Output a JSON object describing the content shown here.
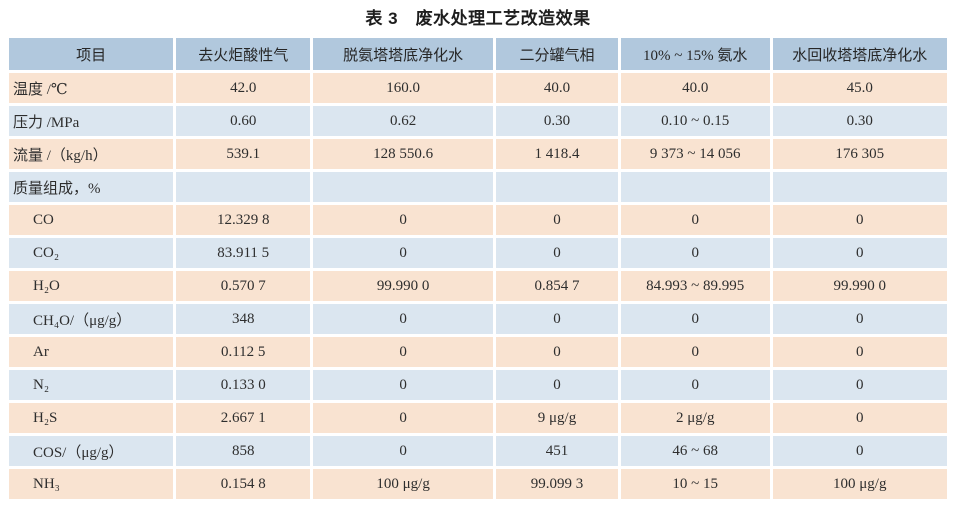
{
  "title": "表 3　废水处理工艺改造效果",
  "colors": {
    "header_bg": "#b1c8dd",
    "row_peach_bg": "#f9e3d1",
    "row_blue_bg": "#dbe6f0",
    "text": "#2e2e2e",
    "page_bg": "#ffffff"
  },
  "table": {
    "headers": [
      "项目",
      "去火炬酸性气",
      "脱氨塔塔底净化水",
      "二分罐气相",
      "10% ~ 15% 氨水",
      "水回收塔塔底净化水"
    ],
    "column_widths_pct": [
      17.8,
      14.5,
      19.5,
      13.2,
      16.1,
      18.9
    ],
    "rows": [
      {
        "label": "温度 /℃",
        "indent": false,
        "values": [
          "42.0",
          "160.0",
          "40.0",
          "40.0",
          "45.0"
        ]
      },
      {
        "label": "压力 /MPa",
        "indent": false,
        "values": [
          "0.60",
          "0.62",
          "0.30",
          "0.10 ~ 0.15",
          "0.30"
        ]
      },
      {
        "label": "流量 /（kg/h）",
        "indent": false,
        "values": [
          "539.1",
          "128 550.6",
          "1 418.4",
          "9 373 ~ 14 056",
          "176 305"
        ]
      },
      {
        "label": "质量组成，%",
        "indent": false,
        "values": [
          "",
          "",
          "",
          "",
          ""
        ]
      },
      {
        "label": "CO",
        "indent": true,
        "values": [
          "12.329 8",
          "0",
          "0",
          "0",
          "0"
        ]
      },
      {
        "label": "CO₂",
        "indent": true,
        "values": [
          "83.911 5",
          "0",
          "0",
          "0",
          "0"
        ]
      },
      {
        "label": "H₂O",
        "indent": true,
        "values": [
          "0.570 7",
          "99.990 0",
          "0.854 7",
          "84.993 ~ 89.995",
          "99.990 0"
        ]
      },
      {
        "label": "CH₄O/（μg/g）",
        "indent": true,
        "values": [
          "348",
          "0",
          "0",
          "0",
          "0"
        ]
      },
      {
        "label": "Ar",
        "indent": true,
        "values": [
          "0.112 5",
          "0",
          "0",
          "0",
          "0"
        ]
      },
      {
        "label": "N₂",
        "indent": true,
        "values": [
          "0.133 0",
          "0",
          "0",
          "0",
          "0"
        ]
      },
      {
        "label": "H₂S",
        "indent": true,
        "values": [
          "2.667 1",
          "0",
          "9 μg/g",
          "2 μg/g",
          "0"
        ]
      },
      {
        "label": "COS/（μg/g）",
        "indent": true,
        "values": [
          "858",
          "0",
          "451",
          "46 ~ 68",
          "0"
        ]
      },
      {
        "label": "NH₃",
        "indent": true,
        "values": [
          "0.154 8",
          "100 μg/g",
          "99.099 3",
          "10 ~ 15",
          "100 μg/g"
        ]
      }
    ]
  }
}
